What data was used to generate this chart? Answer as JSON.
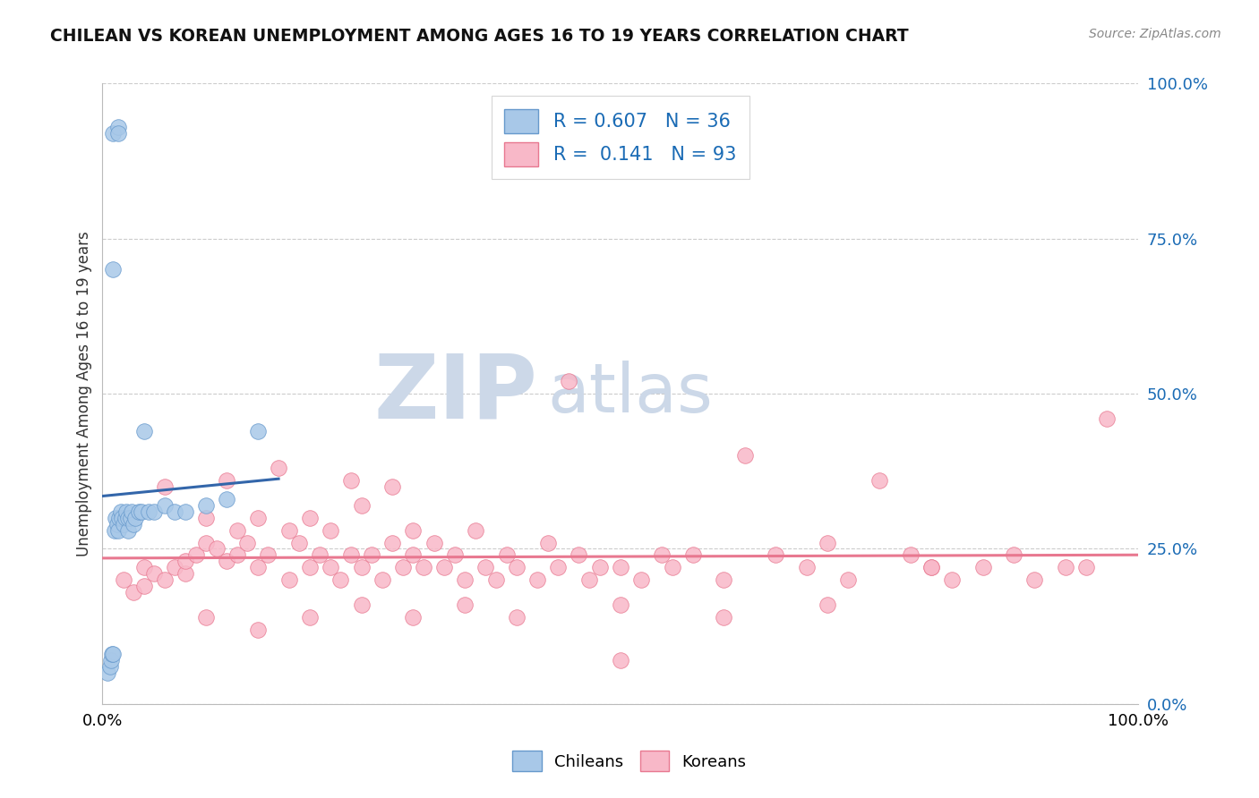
{
  "title": "CHILEAN VS KOREAN UNEMPLOYMENT AMONG AGES 16 TO 19 YEARS CORRELATION CHART",
  "source": "Source: ZipAtlas.com",
  "ylabel": "Unemployment Among Ages 16 to 19 years",
  "xlim": [
    0.0,
    1.0
  ],
  "ylim": [
    0.0,
    1.0
  ],
  "ytick_values": [
    0.0,
    0.25,
    0.5,
    0.75,
    1.0
  ],
  "ytick_labels": [
    "0.0%",
    "25.0%",
    "50.0%",
    "75.0%",
    "100.0%"
  ],
  "chilean_color": "#a8c8e8",
  "chilean_edge_color": "#6699cc",
  "chilean_line_color": "#3366aa",
  "korean_color": "#f8b8c8",
  "korean_edge_color": "#e87890",
  "korean_line_color": "#e87890",
  "background_color": "#ffffff",
  "grid_color": "#cccccc",
  "legend_color_blue": "#1a6bb5",
  "watermark_color": "#ccd8e8",
  "chilean_R": 0.607,
  "chilean_N": 36,
  "korean_R": 0.141,
  "korean_N": 93,
  "chilean_x": [
    0.005,
    0.007,
    0.008,
    0.009,
    0.01,
    0.01,
    0.012,
    0.013,
    0.014,
    0.015,
    0.015,
    0.016,
    0.018,
    0.019,
    0.02,
    0.022,
    0.023,
    0.025,
    0.025,
    0.027,
    0.028,
    0.03,
    0.032,
    0.035,
    0.038,
    0.04,
    0.045,
    0.05,
    0.06,
    0.07,
    0.08,
    0.1,
    0.12,
    0.15,
    0.01,
    0.015
  ],
  "chilean_y": [
    0.05,
    0.06,
    0.07,
    0.08,
    0.08,
    0.92,
    0.28,
    0.3,
    0.29,
    0.28,
    0.93,
    0.3,
    0.31,
    0.3,
    0.29,
    0.3,
    0.31,
    0.28,
    0.3,
    0.3,
    0.31,
    0.29,
    0.3,
    0.31,
    0.31,
    0.44,
    0.31,
    0.31,
    0.32,
    0.31,
    0.31,
    0.32,
    0.33,
    0.44,
    0.7,
    0.92
  ],
  "korean_x": [
    0.02,
    0.03,
    0.04,
    0.04,
    0.05,
    0.06,
    0.06,
    0.07,
    0.08,
    0.08,
    0.09,
    0.1,
    0.1,
    0.11,
    0.12,
    0.12,
    0.13,
    0.13,
    0.14,
    0.15,
    0.15,
    0.16,
    0.17,
    0.18,
    0.18,
    0.19,
    0.2,
    0.2,
    0.21,
    0.22,
    0.22,
    0.23,
    0.24,
    0.24,
    0.25,
    0.25,
    0.26,
    0.27,
    0.28,
    0.28,
    0.29,
    0.3,
    0.3,
    0.31,
    0.32,
    0.33,
    0.34,
    0.35,
    0.36,
    0.37,
    0.38,
    0.39,
    0.4,
    0.42,
    0.43,
    0.44,
    0.45,
    0.46,
    0.47,
    0.48,
    0.5,
    0.5,
    0.52,
    0.54,
    0.55,
    0.57,
    0.6,
    0.62,
    0.65,
    0.68,
    0.7,
    0.72,
    0.75,
    0.78,
    0.8,
    0.82,
    0.85,
    0.88,
    0.9,
    0.93,
    0.95,
    0.97,
    0.1,
    0.15,
    0.2,
    0.25,
    0.3,
    0.35,
    0.4,
    0.5,
    0.6,
    0.7,
    0.8
  ],
  "korean_y": [
    0.2,
    0.18,
    0.19,
    0.22,
    0.21,
    0.2,
    0.35,
    0.22,
    0.21,
    0.23,
    0.24,
    0.26,
    0.3,
    0.25,
    0.23,
    0.36,
    0.24,
    0.28,
    0.26,
    0.22,
    0.3,
    0.24,
    0.38,
    0.2,
    0.28,
    0.26,
    0.22,
    0.3,
    0.24,
    0.22,
    0.28,
    0.2,
    0.24,
    0.36,
    0.32,
    0.22,
    0.24,
    0.2,
    0.26,
    0.35,
    0.22,
    0.24,
    0.28,
    0.22,
    0.26,
    0.22,
    0.24,
    0.2,
    0.28,
    0.22,
    0.2,
    0.24,
    0.22,
    0.2,
    0.26,
    0.22,
    0.52,
    0.24,
    0.2,
    0.22,
    0.22,
    0.07,
    0.2,
    0.24,
    0.22,
    0.24,
    0.2,
    0.4,
    0.24,
    0.22,
    0.26,
    0.2,
    0.36,
    0.24,
    0.22,
    0.2,
    0.22,
    0.24,
    0.2,
    0.22,
    0.22,
    0.46,
    0.14,
    0.12,
    0.14,
    0.16,
    0.14,
    0.16,
    0.14,
    0.16,
    0.14,
    0.16,
    0.22
  ]
}
